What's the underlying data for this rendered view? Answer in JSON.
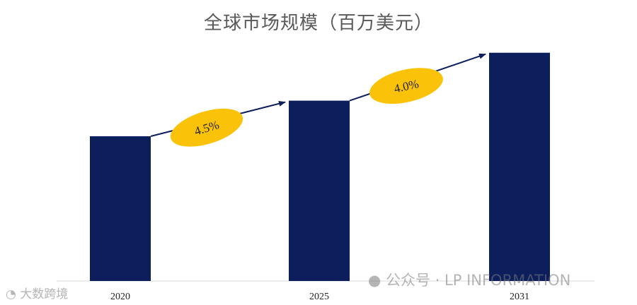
{
  "chart_data": {
    "type": "bar",
    "title": "全球市场规模（百万美元）",
    "categories": [
      "2020",
      "2025",
      "2031"
    ],
    "values": [
      100,
      124.6,
      157.7
    ],
    "ylim": [
      0,
      160
    ],
    "bar_color": "#0c1f5c",
    "growth_rates": [
      {
        "label": "4.5%",
        "from": "2020",
        "to": "2025",
        "angle": -17
      },
      {
        "label": "4.0%",
        "from": "2025",
        "to": "2031",
        "angle": -13
      }
    ],
    "growth_color": "#fbc20a",
    "arrow_color": "#0c1f5c",
    "grid": false,
    "legend": "none"
  },
  "watermarks": {
    "right_text": "公众号 · LP INFORMATION",
    "left_text": "大数跨境"
  }
}
